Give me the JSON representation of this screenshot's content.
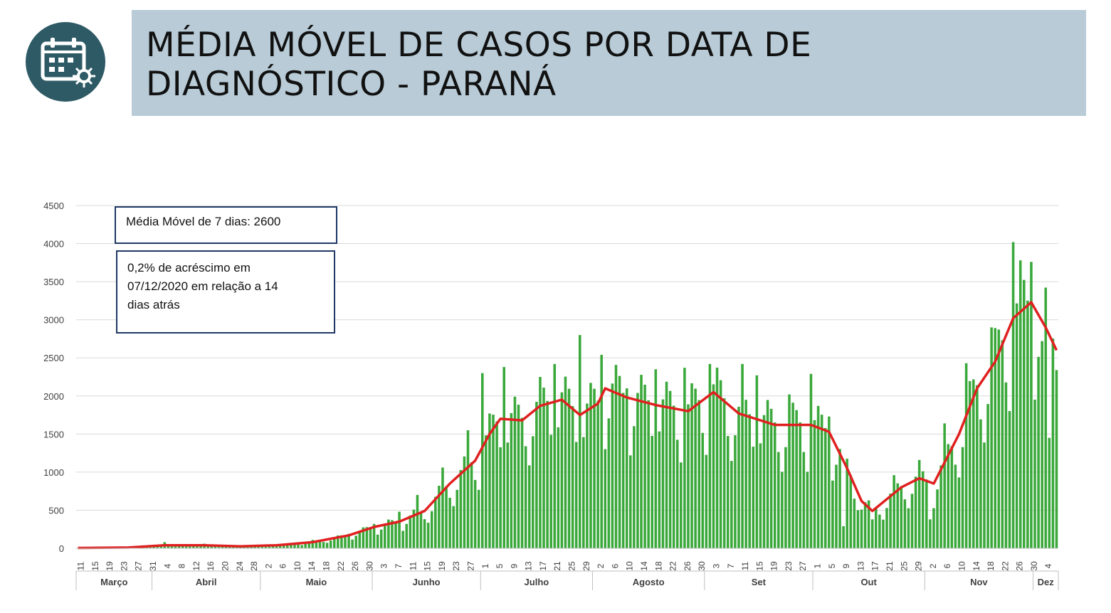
{
  "title": {
    "line1": "MÉDIA MÓVEL DE CASOS POR DATA DE",
    "line2": "DIAGNÓSTICO - PARANÁ"
  },
  "icon": "calendar-virus-icon",
  "colors": {
    "header_band": "#b8cbd6",
    "icon_bg": "#2e5a66",
    "bars": "#3aa83a",
    "moving_average": "#e02020",
    "box_border": "#1f3864"
  },
  "annotations": {
    "moving_average": "Média Móvel de 7 dias: 2600",
    "change_line1": "0,2% de acréscimo em",
    "change_line2": "07/12/2020  em relação a 14",
    "change_line3": "dias atrás"
  },
  "chart_data": {
    "type": "bar",
    "ylim": [
      0,
      4500
    ],
    "yticks": [
      0,
      500,
      1000,
      1500,
      2000,
      2500,
      3000,
      3500,
      4000,
      4500
    ],
    "grid": true,
    "months": [
      "Março",
      "Abril",
      "Maio",
      "Junho",
      "Julho",
      "Agosto",
      "Set",
      "Out",
      "Nov",
      "Dez"
    ],
    "day_tick_labels": [
      "11",
      "15",
      "19",
      "23",
      "27",
      "31",
      "4",
      "8",
      "12",
      "16",
      "20",
      "24",
      "28",
      "2",
      "6",
      "10",
      "14",
      "18",
      "22",
      "26",
      "30",
      "3",
      "7",
      "11",
      "15",
      "19",
      "23",
      "27",
      "1",
      "5",
      "9",
      "13",
      "17",
      "21",
      "25",
      "29",
      "2",
      "6",
      "10",
      "14",
      "18",
      "22",
      "26",
      "30",
      "3",
      "7",
      "11",
      "15",
      "19",
      "23",
      "27",
      "1",
      "5",
      "9",
      "13",
      "17",
      "21",
      "25",
      "29",
      "2",
      "6",
      "10",
      "14",
      "18",
      "22",
      "26",
      "30",
      "4"
    ],
    "daily_bars": [
      {
        "date": "2020-03-11",
        "value": 5
      },
      {
        "date": "2020-03-25",
        "value": 15
      },
      {
        "date": "2020-04-04",
        "value": 80
      },
      {
        "date": "2020-04-15",
        "value": 60
      },
      {
        "date": "2020-05-01",
        "value": 50
      },
      {
        "date": "2020-05-15",
        "value": 110
      },
      {
        "date": "2020-05-25",
        "value": 190
      },
      {
        "date": "2020-06-01",
        "value": 320
      },
      {
        "date": "2020-06-08",
        "value": 480
      },
      {
        "date": "2020-06-13",
        "value": 700
      },
      {
        "date": "2020-06-20",
        "value": 1060
      },
      {
        "date": "2020-06-27",
        "value": 1550
      },
      {
        "date": "2020-07-01",
        "value": 2300
      },
      {
        "date": "2020-07-07",
        "value": 2380
      },
      {
        "date": "2020-07-17",
        "value": 2250
      },
      {
        "date": "2020-07-21",
        "value": 2420
      },
      {
        "date": "2020-07-28",
        "value": 2800
      },
      {
        "date": "2020-08-03",
        "value": 2540
      },
      {
        "date": "2020-08-10",
        "value": 2100
      },
      {
        "date": "2020-08-18",
        "value": 2350
      },
      {
        "date": "2020-08-26",
        "value": 2370
      },
      {
        "date": "2020-09-02",
        "value": 2420
      },
      {
        "date": "2020-09-11",
        "value": 2420
      },
      {
        "date": "2020-09-15",
        "value": 2270
      },
      {
        "date": "2020-09-24",
        "value": 2020
      },
      {
        "date": "2020-09-30",
        "value": 2290
      },
      {
        "date": "2020-10-05",
        "value": 1730
      },
      {
        "date": "2020-10-09",
        "value": 290
      },
      {
        "date": "2020-10-13",
        "value": 500
      },
      {
        "date": "2020-10-17",
        "value": 380
      },
      {
        "date": "2020-10-23",
        "value": 960
      },
      {
        "date": "2020-10-30",
        "value": 1160
      },
      {
        "date": "2020-11-02",
        "value": 380
      },
      {
        "date": "2020-11-06",
        "value": 1640
      },
      {
        "date": "2020-11-12",
        "value": 2430
      },
      {
        "date": "2020-11-19",
        "value": 2900
      },
      {
        "date": "2020-11-25",
        "value": 4020
      },
      {
        "date": "2020-11-27",
        "value": 3780
      },
      {
        "date": "2020-11-30",
        "value": 3760
      },
      {
        "date": "2020-12-03",
        "value": 2720
      },
      {
        "date": "2020-12-05",
        "value": 1450
      },
      {
        "date": "2020-12-07",
        "value": 2340
      }
    ],
    "series": [
      {
        "values": [
          {
            "date": "2020-03-11",
            "value": 5
          },
          {
            "date": "2020-03-25",
            "value": 10
          },
          {
            "date": "2020-04-04",
            "value": 40
          },
          {
            "date": "2020-04-15",
            "value": 40
          },
          {
            "date": "2020-04-25",
            "value": 25
          },
          {
            "date": "2020-05-05",
            "value": 40
          },
          {
            "date": "2020-05-15",
            "value": 80
          },
          {
            "date": "2020-05-25",
            "value": 170
          },
          {
            "date": "2020-06-01",
            "value": 280
          },
          {
            "date": "2020-06-08",
            "value": 350
          },
          {
            "date": "2020-06-15",
            "value": 490
          },
          {
            "date": "2020-06-22",
            "value": 850
          },
          {
            "date": "2020-06-29",
            "value": 1150
          },
          {
            "date": "2020-07-03",
            "value": 1500
          },
          {
            "date": "2020-07-06",
            "value": 1700
          },
          {
            "date": "2020-07-12",
            "value": 1680
          },
          {
            "date": "2020-07-17",
            "value": 1870
          },
          {
            "date": "2020-07-23",
            "value": 1950
          },
          {
            "date": "2020-07-28",
            "value": 1750
          },
          {
            "date": "2020-08-02",
            "value": 1900
          },
          {
            "date": "2020-08-04",
            "value": 2100
          },
          {
            "date": "2020-08-10",
            "value": 1980
          },
          {
            "date": "2020-08-18",
            "value": 1880
          },
          {
            "date": "2020-08-27",
            "value": 1800
          },
          {
            "date": "2020-09-03",
            "value": 2050
          },
          {
            "date": "2020-09-10",
            "value": 1770
          },
          {
            "date": "2020-09-20",
            "value": 1620
          },
          {
            "date": "2020-09-30",
            "value": 1620
          },
          {
            "date": "2020-10-05",
            "value": 1530
          },
          {
            "date": "2020-10-10",
            "value": 1050
          },
          {
            "date": "2020-10-14",
            "value": 620
          },
          {
            "date": "2020-10-17",
            "value": 490
          },
          {
            "date": "2020-10-25",
            "value": 800
          },
          {
            "date": "2020-10-30",
            "value": 920
          },
          {
            "date": "2020-11-03",
            "value": 850
          },
          {
            "date": "2020-11-10",
            "value": 1500
          },
          {
            "date": "2020-11-15",
            "value": 2100
          },
          {
            "date": "2020-11-20",
            "value": 2450
          },
          {
            "date": "2020-11-25",
            "value": 3020
          },
          {
            "date": "2020-11-30",
            "value": 3230
          },
          {
            "date": "2020-12-04",
            "value": 2900
          },
          {
            "date": "2020-12-07",
            "value": 2600
          }
        ]
      }
    ]
  }
}
